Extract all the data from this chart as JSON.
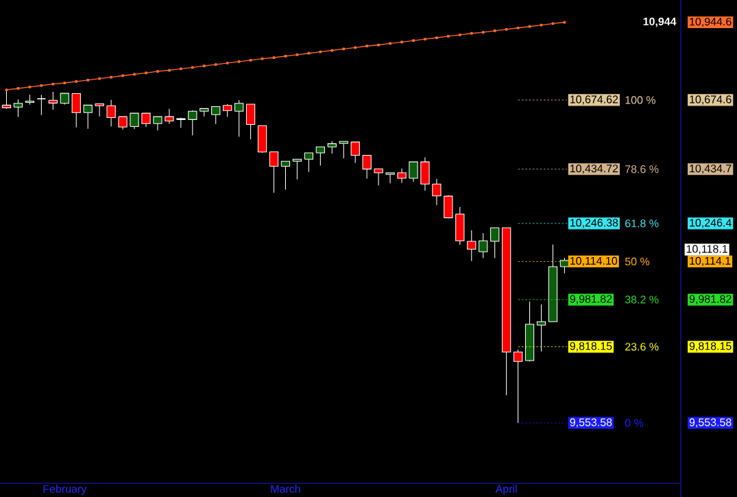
{
  "chart_data": {
    "type": "candlestick",
    "categories": [
      null,
      null,
      null,
      null,
      null,
      "February",
      null,
      null,
      null,
      null,
      null,
      null,
      null,
      null,
      null,
      null,
      null,
      null,
      null,
      null,
      null,
      null,
      null,
      null,
      "March",
      null,
      null,
      null,
      null,
      null,
      null,
      null,
      null,
      null,
      null,
      null,
      null,
      null,
      null,
      null,
      null,
      null,
      null,
      "April",
      null,
      null,
      null,
      null,
      null
    ],
    "ohlc": [
      [
        10657,
        10711,
        10644,
        10648
      ],
      [
        10650,
        10677,
        10616,
        10663
      ],
      [
        10666,
        10693,
        10659,
        10671
      ],
      [
        10679,
        10693,
        10623,
        10679
      ],
      [
        10674,
        10703,
        10641,
        10664
      ],
      [
        10663,
        10698,
        10659,
        10698
      ],
      [
        10697,
        10697,
        10580,
        10631
      ],
      [
        10631,
        10657,
        10575,
        10657
      ],
      [
        10662,
        10662,
        10618,
        10655
      ],
      [
        10655,
        10675,
        10583,
        10614
      ],
      [
        10617,
        10617,
        10572,
        10581
      ],
      [
        10583,
        10629,
        10574,
        10629
      ],
      [
        10629,
        10629,
        10581,
        10593
      ],
      [
        10593,
        10617,
        10569,
        10617
      ],
      [
        10617,
        10644,
        10592,
        10602
      ],
      [
        10607,
        10613,
        10578,
        10610
      ],
      [
        10607,
        10639,
        10552,
        10636
      ],
      [
        10636,
        10645,
        10618,
        10645
      ],
      [
        10624,
        10652,
        10592,
        10652
      ],
      [
        10656,
        10660,
        10616,
        10638
      ],
      [
        10636,
        10674.62,
        10547,
        10663
      ],
      [
        10660,
        10660,
        10538,
        10590
      ],
      [
        10586,
        10586,
        10492,
        10494
      ],
      [
        10495,
        10495,
        10353,
        10445
      ],
      [
        10445,
        10462,
        10364,
        10462
      ],
      [
        10462,
        10469,
        10399,
        10469
      ],
      [
        10469,
        10491,
        10425,
        10491
      ],
      [
        10491,
        10512,
        10447,
        10512
      ],
      [
        10512,
        10532,
        10489,
        10523
      ],
      [
        10524,
        10531,
        10472,
        10531
      ],
      [
        10529,
        10529,
        10456,
        10483
      ],
      [
        10483,
        10483,
        10402,
        10435
      ],
      [
        10436,
        10436,
        10378,
        10422
      ],
      [
        10417,
        10422,
        10385,
        10422
      ],
      [
        10422,
        10437,
        10387,
        10403
      ],
      [
        10403,
        10460,
        10390,
        10460
      ],
      [
        10460,
        10476,
        10360,
        10383
      ],
      [
        10383,
        10401,
        10310,
        10342
      ],
      [
        10341,
        10344,
        10264,
        10266
      ],
      [
        10279,
        10303,
        10172,
        10186
      ],
      [
        10184,
        10222,
        10116,
        10157
      ],
      [
        10148,
        10213,
        10126,
        10186
      ],
      [
        10184,
        10231,
        10126,
        10231
      ],
      [
        10231,
        10231,
        9650,
        9800
      ],
      [
        9800,
        9808,
        9553.58,
        9767
      ],
      [
        9770,
        9975,
        9767,
        9896
      ],
      [
        9893,
        9965,
        9802,
        9905
      ],
      [
        9905,
        10173,
        9905,
        10096
      ],
      [
        10096,
        10127,
        10073,
        10118.1
      ]
    ],
    "series": [
      {
        "type": "line",
        "color": "#ff6a2a",
        "marker": "square",
        "values": [
          10710,
          10715,
          10720,
          10725,
          10730,
          10734,
          10739,
          10744,
          10749,
          10754,
          10759,
          10764,
          10769,
          10774,
          10778,
          10783,
          10788,
          10793,
          10798,
          10803,
          10808,
          10813,
          10818,
          10822,
          10827,
          10832,
          10837,
          10842,
          10847,
          10852,
          10857,
          10862,
          10866,
          10871,
          10876,
          10881,
          10886,
          10891,
          10896,
          10901,
          10906,
          10910,
          10915,
          10920,
          10925,
          10930,
          10935,
          10940,
          10944.6
        ]
      }
    ],
    "ylim": [
      9344,
      11022
    ],
    "yticks": [
      {
        "value": 10944.6,
        "label": "10,944.6"
      },
      {
        "value": 10674.62,
        "label": "10,674.6"
      },
      {
        "value": 10434.72,
        "label": "10,434.7"
      },
      {
        "value": 10246.38,
        "label": "10,246.4"
      },
      {
        "value": 10114.1,
        "label": "10,114.1"
      },
      {
        "value": 9981.82,
        "label": "9,981.82"
      },
      {
        "value": 9818.15,
        "label": "9,818.15"
      },
      {
        "value": 9553.58,
        "label": "9,553.58"
      }
    ],
    "ref_lines": [
      {
        "axis": "y",
        "value": 10674.62,
        "label": "10,674.62",
        "color": "#e0c898",
        "line_style": "dashed"
      },
      {
        "axis": "y",
        "value": 10434.72,
        "label": "10,434.72",
        "color": "#d2b48c",
        "line_style": "dashed"
      },
      {
        "axis": "y",
        "value": 10246.38,
        "label": "10,246.38",
        "color": "#33e6f0",
        "line_style": "dashed"
      },
      {
        "axis": "y",
        "value": 10114.1,
        "label": "10,114.10",
        "color": "#ffaa00",
        "line_style": "dashed"
      },
      {
        "axis": "y",
        "value": 9981.82,
        "label": "9,981.82",
        "color": "#22dd22",
        "line_style": "dashed"
      },
      {
        "axis": "y",
        "value": 9818.15,
        "label": "9,818.15",
        "color": "#ffff00",
        "line_style": "dashed"
      },
      {
        "axis": "y",
        "value": 9553.58,
        "label": "9,553.58",
        "color": "#1a1aff",
        "line_style": "dashed"
      }
    ],
    "annotations": [
      "100 %",
      "78.6 %",
      "61.8 %",
      "50  %",
      "38.2 %",
      "23.6 %",
      "0 %",
      "10,944",
      "10,118.1"
    ]
  }
}
